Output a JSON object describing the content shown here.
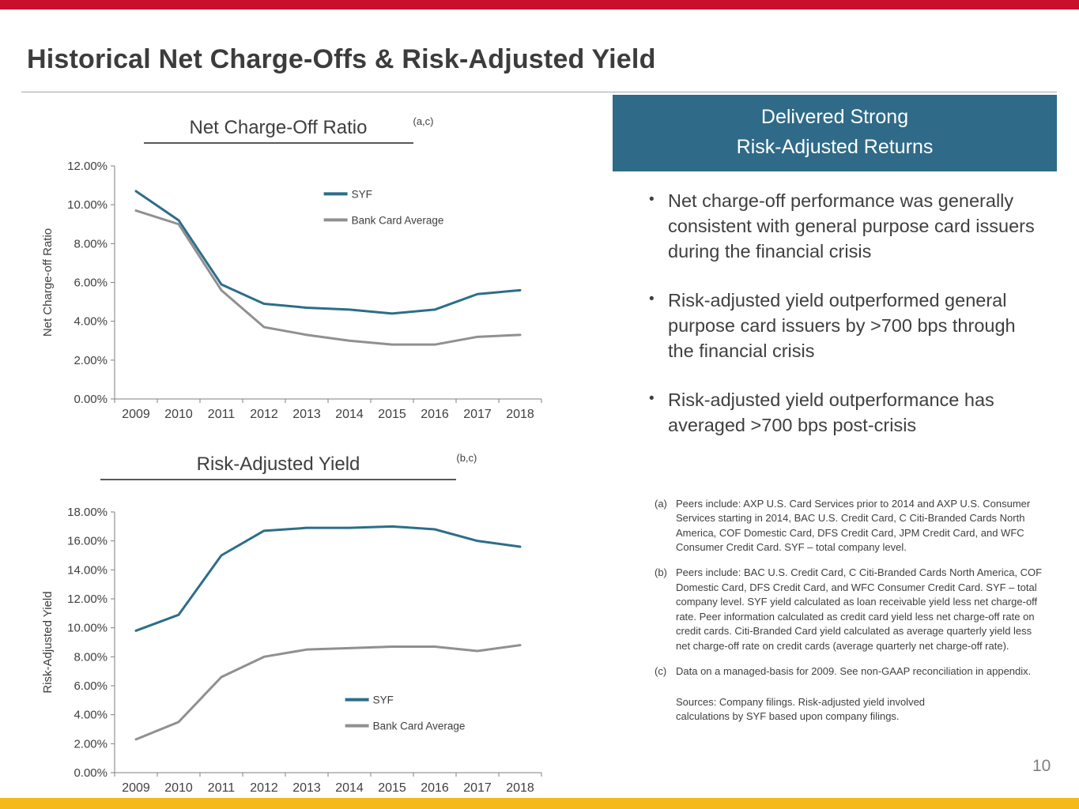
{
  "page": {
    "title": "Historical Net Charge-Offs & Risk-Adjusted Yield",
    "page_number": "10"
  },
  "colors": {
    "top_bar": "#C8102E",
    "bottom_bar": "#F5B919",
    "header_box": "#2F6B88",
    "syf_line": "#2C6E8A",
    "peer_line": "#909090",
    "axis": "#7F7F7F",
    "text": "#3F3F3F"
  },
  "right_panel": {
    "header_line1": "Delivered Strong",
    "header_line2": "Risk-Adjusted Returns",
    "bullets": [
      "Net charge-off performance was generally consistent with general purpose card issuers during the financial crisis",
      "Risk-adjusted yield outperformed general purpose card issuers by >700 bps through the financial crisis",
      "Risk-adjusted yield outperformance has averaged >700 bps post-crisis"
    ],
    "footnotes": [
      {
        "label": "(a)",
        "text": "Peers include: AXP U.S. Card Services prior to 2014 and AXP U.S. Consumer Services starting in 2014, BAC U.S. Credit Card, C Citi-Branded Cards North America, COF Domestic Card, DFS Credit Card, JPM Credit Card, and WFC Consumer Credit Card.  SYF – total company level."
      },
      {
        "label": "(b)",
        "text": "Peers include: BAC U.S. Credit Card, C Citi-Branded Cards North America, COF Domestic Card, DFS Credit Card, and WFC Consumer Credit Card. SYF – total company level. SYF yield calculated as loan receivable yield less net charge-off rate.  Peer information calculated as credit card yield less net charge-off rate on credit cards. Citi-Branded Card yield calculated as average quarterly yield less net charge-off rate on credit cards (average quarterly net charge-off rate)."
      },
      {
        "label": "(c)",
        "text": "Data on a managed-basis for 2009. See non-GAAP reconciliation in appendix."
      }
    ],
    "sources": "Sources: Company filings. Risk-adjusted yield involved calculations by SYF based upon company filings."
  },
  "chart_data": [
    {
      "type": "line",
      "title": "Net Charge-Off Ratio",
      "title_note": "(a,c)",
      "ylabel": "Net Charge-off Ratio",
      "xlabel": "",
      "categories": [
        "2009",
        "2010",
        "2011",
        "2012",
        "2013",
        "2014",
        "2015",
        "2016",
        "2017",
        "2018"
      ],
      "series": [
        {
          "name": "SYF",
          "color": "#2C6E8A",
          "values": [
            10.7,
            9.2,
            5.9,
            4.9,
            4.7,
            4.6,
            4.4,
            4.6,
            5.4,
            5.6
          ]
        },
        {
          "name": "Bank Card Average",
          "color": "#909090",
          "values": [
            9.7,
            9.0,
            5.6,
            3.7,
            3.3,
            3.0,
            2.8,
            2.8,
            3.2,
            3.3
          ]
        }
      ],
      "ylim": [
        0,
        12
      ],
      "ytick_step": 2,
      "grid": false,
      "legend_pos": {
        "fx": 0.49,
        "fy": 0.12
      }
    },
    {
      "type": "line",
      "title": "Risk-Adjusted Yield",
      "title_note": "(b,c)",
      "ylabel": "Risk-Adjusted Yield",
      "xlabel": "",
      "categories": [
        "2009",
        "2010",
        "2011",
        "2012",
        "2013",
        "2014",
        "2015",
        "2016",
        "2017",
        "2018"
      ],
      "series": [
        {
          "name": "SYF",
          "color": "#2C6E8A",
          "values": [
            9.8,
            10.9,
            15.0,
            16.7,
            16.9,
            16.9,
            17.0,
            16.8,
            16.0,
            15.6
          ]
        },
        {
          "name": "Bank Card Average",
          "color": "#909090",
          "values": [
            2.3,
            3.5,
            6.6,
            8.0,
            8.5,
            8.6,
            8.7,
            8.7,
            8.4,
            8.8
          ]
        }
      ],
      "ylim": [
        0,
        18
      ],
      "ytick_step": 2,
      "grid": false,
      "legend_pos": {
        "fx": 0.54,
        "fy": 0.72
      }
    }
  ]
}
